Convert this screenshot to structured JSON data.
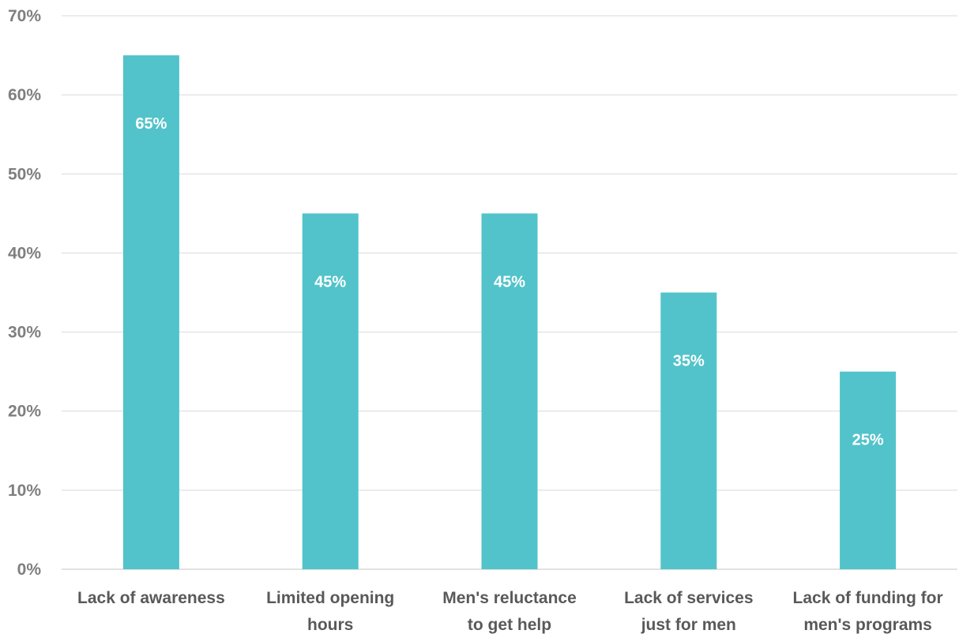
{
  "chart_data": {
    "type": "bar",
    "categories": [
      [
        "Lack of awareness"
      ],
      [
        "Limited opening",
        "hours"
      ],
      [
        "Men's reluctance",
        "to get help"
      ],
      [
        "Lack of services",
        "just for men"
      ],
      [
        "Lack of funding for",
        "men's programs"
      ]
    ],
    "values": [
      65,
      45,
      45,
      35,
      25
    ],
    "data_labels": [
      "65%",
      "45%",
      "45%",
      "35%",
      "25%"
    ],
    "y_ticks": [
      0,
      10,
      20,
      30,
      40,
      50,
      60,
      70
    ],
    "y_tick_labels": [
      "0%",
      "10%",
      "20%",
      "30%",
      "40%",
      "50%",
      "60%",
      "70%"
    ],
    "ylim": [
      0,
      70
    ],
    "grid": true,
    "legend": "none",
    "bar_color": "#52c3ca",
    "grid_color": "#d9d9d9",
    "title": "",
    "xlabel": "",
    "ylabel": ""
  }
}
